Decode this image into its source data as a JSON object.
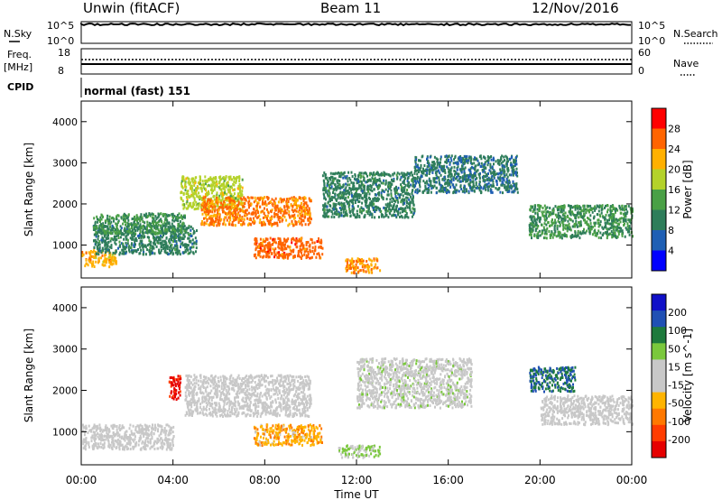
{
  "header": {
    "station": "Unwin (fitACF)",
    "beam": "Beam 11",
    "date": "12/Nov/2016"
  },
  "top_panels": {
    "nsky": {
      "label": "N.Sky",
      "ticks": [
        "10^5",
        "10^0"
      ],
      "right_ticks": [
        "10^5",
        "10^0"
      ],
      "right_label": "N.Search"
    },
    "freq": {
      "label_1": "Freq.",
      "label_2": "[MHz]",
      "ticks": [
        "18",
        "8"
      ],
      "right_ticks": [
        "60",
        "0"
      ],
      "right_label": "Nave"
    },
    "cpid": {
      "label": "CPID",
      "value": "normal (fast) 151"
    }
  },
  "colors": {
    "power_scale": [
      "#0000ff",
      "#1f5fb4",
      "#2e7d5a",
      "#4aa046",
      "#b4d22a",
      "#ffb000",
      "#ff6400",
      "#ff0000"
    ],
    "velocity_scale": [
      "#1010c8",
      "#2050b4",
      "#1e7a3c",
      "#7ac83c",
      "#c8c8c8",
      "#c8c8c8",
      "#ffb400",
      "#ff7800",
      "#ff3c00",
      "#e60000"
    ]
  },
  "chart_data": [
    {
      "type": "heatmap",
      "name": "power",
      "ylabel": "Slant Range [km]",
      "yticks": [
        "1000",
        "2000",
        "3000",
        "4000"
      ],
      "ylim": [
        200,
        4500
      ],
      "colorbar": {
        "label": "Power [dB]",
        "ticks": [
          "4",
          "8",
          "12",
          "16",
          "20",
          "24",
          "28"
        ],
        "range": [
          0,
          32
        ]
      },
      "regions": [
        {
          "name": "",
          "x": [
            0.0,
            1.5
          ],
          "y": [
            500,
            900
          ],
          "value": 22
        },
        {
          "name": "",
          "x": [
            0.5,
            5.0
          ],
          "y": [
            800,
            1500
          ],
          "value": 10
        },
        {
          "name": "",
          "x": [
            0.5,
            4.5
          ],
          "y": [
            1300,
            1800
          ],
          "value": 12
        },
        {
          "name": "",
          "x": [
            4.3,
            7.0
          ],
          "y": [
            1900,
            2700
          ],
          "value": 18
        },
        {
          "name": "",
          "x": [
            5.2,
            10.0
          ],
          "y": [
            1500,
            2200
          ],
          "value": 25
        },
        {
          "name": "",
          "x": [
            7.5,
            10.5
          ],
          "y": [
            700,
            1200
          ],
          "value": 26
        },
        {
          "name": "",
          "x": [
            10.5,
            14.5
          ],
          "y": [
            1700,
            2800
          ],
          "value": 10
        },
        {
          "name": "",
          "x": [
            11.5,
            13.0
          ],
          "y": [
            350,
            700
          ],
          "value": 24
        },
        {
          "name": "",
          "x": [
            14.5,
            19.0
          ],
          "y": [
            2300,
            3200
          ],
          "value": 9
        },
        {
          "name": "",
          "x": [
            19.5,
            24.0
          ],
          "y": [
            1200,
            2000
          ],
          "value": 12
        }
      ]
    },
    {
      "type": "heatmap",
      "name": "velocity",
      "ylabel": "Slant Range [km]",
      "yticks": [
        "1000",
        "2000",
        "3000",
        "4000"
      ],
      "ylim": [
        200,
        4500
      ],
      "colorbar": {
        "label": "Velocity [m s^-1]",
        "ticks": [
          "200",
          "100",
          "50",
          "15",
          "-15",
          "-50",
          "-100",
          "-200"
        ],
        "range": [
          -250,
          250
        ]
      },
      "regions": [
        {
          "name": "",
          "x": [
            0.0,
            4.0
          ],
          "y": [
            600,
            1200
          ],
          "value": 0
        },
        {
          "name": "",
          "x": [
            3.8,
            4.3
          ],
          "y": [
            1800,
            2400
          ],
          "value": -220
        },
        {
          "name": "",
          "x": [
            4.5,
            10.0
          ],
          "y": [
            1400,
            2400
          ],
          "value": 0
        },
        {
          "name": "",
          "x": [
            7.5,
            10.5
          ],
          "y": [
            700,
            1200
          ],
          "value": -80
        },
        {
          "name": "",
          "x": [
            11.2,
            13.0
          ],
          "y": [
            400,
            700
          ],
          "value": 60
        },
        {
          "name": "",
          "x": [
            12.0,
            17.0
          ],
          "y": [
            1600,
            2800
          ],
          "value": 20
        },
        {
          "name": "",
          "x": [
            19.5,
            21.5
          ],
          "y": [
            2000,
            2600
          ],
          "value": 150
        },
        {
          "name": "",
          "x": [
            20.0,
            24.0
          ],
          "y": [
            1200,
            1900
          ],
          "value": 0
        }
      ]
    }
  ],
  "xaxis": {
    "ticks": [
      "00:00",
      "04:00",
      "08:00",
      "12:00",
      "16:00",
      "20:00",
      "00:00"
    ],
    "label": "Time UT",
    "range": [
      0,
      24
    ]
  }
}
